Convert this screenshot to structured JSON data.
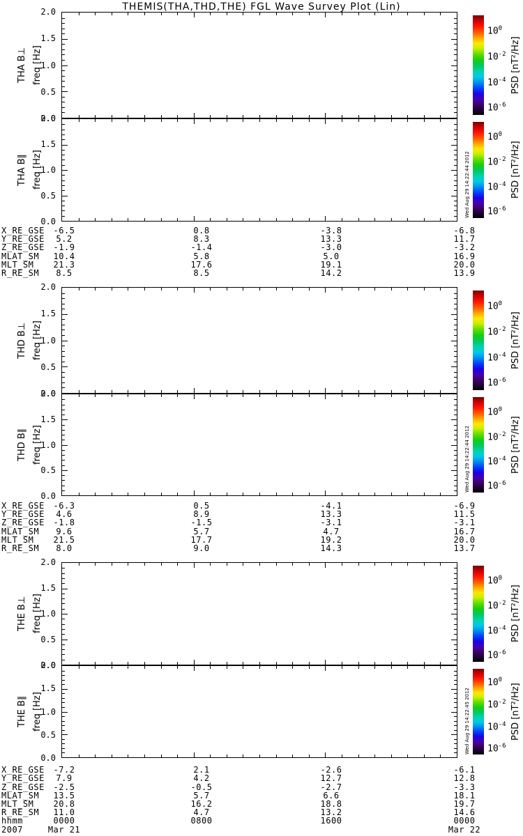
{
  "title": "THEMIS(THA,THD,THE) FGL Wave Survey Plot (Lin)",
  "axes": {
    "freq_label": "freq [Hz]",
    "freq_ticks": [
      "2.0",
      "1.5",
      "1.0",
      "0.5",
      "0.0"
    ],
    "psd_label": "PSD [nT²/Hz]",
    "psd_ticks": [
      {
        "base": "10",
        "exp": "0"
      },
      {
        "base": "10",
        "exp": "-2"
      },
      {
        "base": "10",
        "exp": "-4"
      },
      {
        "base": "10",
        "exp": "-6"
      }
    ]
  },
  "panels": [
    {
      "label": "THA B⊥"
    },
    {
      "label": "THA B∥",
      "timestamp": "Wed Aug 29 14:22:44 2012"
    },
    {
      "label": "THD B⊥"
    },
    {
      "label": "THD B∥",
      "timestamp": "Wed Aug 29 14:22:44 2012"
    },
    {
      "label": "THE B⊥"
    },
    {
      "label": "THE B∥",
      "timestamp": "Wed Aug 29 14:22:45 2012"
    }
  ],
  "tables": [
    {
      "spacecraft": "THA",
      "rows": [
        {
          "label": "X_RE_GSE",
          "values": [
            "-6.5",
            "0.8",
            "-3.8",
            "-6.8"
          ]
        },
        {
          "label": "Y_RE_GSE",
          "values": [
            "5.2",
            "8.3",
            "13.3",
            "11.7"
          ]
        },
        {
          "label": "Z_RE_GSE",
          "values": [
            "-1.9",
            "-1.4",
            "-3.0",
            "-3.2"
          ]
        },
        {
          "label": "MLAT_SM",
          "values": [
            "10.4",
            "5.8",
            "5.0",
            "16.9"
          ]
        },
        {
          "label": "MLT_SM",
          "values": [
            "21.3",
            "17.6",
            "19.1",
            "20.0"
          ]
        },
        {
          "label": "R_RE_SM",
          "values": [
            "8.5",
            "8.5",
            "14.2",
            "13.9"
          ]
        }
      ]
    },
    {
      "spacecraft": "THD",
      "rows": [
        {
          "label": "X_RE_GSE",
          "values": [
            "-6.3",
            "0.5",
            "-4.1",
            "-6.9"
          ]
        },
        {
          "label": "Y_RE_GSE",
          "values": [
            "4.6",
            "8.9",
            "13.3",
            "11.5"
          ]
        },
        {
          "label": "Z_RE_GSE",
          "values": [
            "-1.8",
            "-1.5",
            "-3.1",
            "-3.1"
          ]
        },
        {
          "label": "MLAT_SM",
          "values": [
            "9.6",
            "5.7",
            "4.7",
            "16.7"
          ]
        },
        {
          "label": "MLT_SM",
          "values": [
            "21.5",
            "17.7",
            "19.2",
            "20.0"
          ]
        },
        {
          "label": "R_RE_SM",
          "values": [
            "8.0",
            "9.0",
            "14.3",
            "13.7"
          ]
        }
      ]
    },
    {
      "spacecraft": "THE",
      "rows": [
        {
          "label": "X_RE_GSE",
          "values": [
            "-7.2",
            "2.1",
            "-2.6",
            "-6.1"
          ]
        },
        {
          "label": "Y_RE_GSE",
          "values": [
            "7.9",
            "4.2",
            "12.7",
            "12.8"
          ]
        },
        {
          "label": "Z_RE_GSE",
          "values": [
            "-2.5",
            "-0.5",
            "-2.7",
            "-3.3"
          ]
        },
        {
          "label": "MLAT_SM",
          "values": [
            "13.5",
            "5.7",
            "6.6",
            "18.1"
          ]
        },
        {
          "label": "MLT_SM",
          "values": [
            "20.8",
            "16.2",
            "18.8",
            "19.7"
          ]
        },
        {
          "label": "R_RE_SM",
          "values": [
            "11.0",
            "4.7",
            "13.2",
            "14.6"
          ]
        }
      ]
    }
  ],
  "time_axis": {
    "label": "hhmm",
    "ticks": [
      "0000",
      "0800",
      "1600",
      "0000"
    ],
    "year": "2007",
    "date_start": "Mar 21",
    "date_end": "Mar 22"
  },
  "colors": {
    "background": "#ffffff",
    "foreground": "#000000",
    "colorbar_gradient": [
      [
        "#6e0000",
        "0%"
      ],
      [
        "#c80000",
        "5%"
      ],
      [
        "#ff1400",
        "11%"
      ],
      [
        "#ff6400",
        "18%"
      ],
      [
        "#ffaa00",
        "23%"
      ],
      [
        "#ffe600",
        "28%"
      ],
      [
        "#c8f000",
        "33%"
      ],
      [
        "#64dc00",
        "39%"
      ],
      [
        "#14cd14",
        "45%"
      ],
      [
        "#00c864",
        "51%"
      ],
      [
        "#00d2b4",
        "57%"
      ],
      [
        "#00c8e6",
        "62%"
      ],
      [
        "#0096f0",
        "67%"
      ],
      [
        "#0046fa",
        "73%"
      ],
      [
        "#1e00e6",
        "79%"
      ],
      [
        "#4600aa",
        "85%"
      ],
      [
        "#3c0064",
        "90%"
      ],
      [
        "#1e0032",
        "95%"
      ],
      [
        "#000000",
        "100%"
      ]
    ]
  },
  "chart_data": {
    "type": "heatmap",
    "title": "THEMIS(THA,THD,THE) FGL Wave Survey Plot (Lin)",
    "note": "Six stacked wave-power spectrogram panels; all panels are blank (no spectral data plotted).",
    "panels": [
      "THA B⊥",
      "THA B∥",
      "THD B⊥",
      "THD B∥",
      "THE B⊥",
      "THE B∥"
    ],
    "ylabel": "freq [Hz]",
    "ylim": [
      0.0,
      2.0
    ],
    "y_major_ticks": [
      0.0,
      0.5,
      1.0,
      1.5,
      2.0
    ],
    "colorbar": {
      "label": "PSD [nT²/Hz]",
      "scale": "log",
      "tick_values": [
        1,
        0.01,
        0.0001,
        1e-06
      ],
      "tick_labels": [
        "10^0",
        "10^-2",
        "10^-4",
        "10^-6"
      ]
    },
    "x": {
      "label": "hhmm",
      "start": "2007 Mar 21 0000",
      "end": "2007 Mar 22 0000",
      "tick_hours": [
        0,
        8,
        16,
        24
      ],
      "tick_labels": [
        "0000",
        "0800",
        "1600",
        "0000"
      ]
    },
    "ephemeris": {
      "tick_times_hhmm": [
        "0000",
        "0800",
        "1600",
        "0000"
      ],
      "THA": {
        "X_RE_GSE": [
          -6.5,
          0.8,
          -3.8,
          -6.8
        ],
        "Y_RE_GSE": [
          5.2,
          8.3,
          13.3,
          11.7
        ],
        "Z_RE_GSE": [
          -1.9,
          -1.4,
          -3.0,
          -3.2
        ],
        "MLAT_SM": [
          10.4,
          5.8,
          5.0,
          16.9
        ],
        "MLT_SM": [
          21.3,
          17.6,
          19.1,
          20.0
        ],
        "R_RE_SM": [
          8.5,
          8.5,
          14.2,
          13.9
        ]
      },
      "THD": {
        "X_RE_GSE": [
          -6.3,
          0.5,
          -4.1,
          -6.9
        ],
        "Y_RE_GSE": [
          4.6,
          8.9,
          13.3,
          11.5
        ],
        "Z_RE_GSE": [
          -1.8,
          -1.5,
          -3.1,
          -3.1
        ],
        "MLAT_SM": [
          9.6,
          5.7,
          4.7,
          16.7
        ],
        "MLT_SM": [
          21.5,
          17.7,
          19.2,
          20.0
        ],
        "R_RE_SM": [
          8.0,
          9.0,
          14.3,
          13.7
        ]
      },
      "THE": {
        "X_RE_GSE": [
          -7.2,
          2.1,
          -2.6,
          -6.1
        ],
        "Y_RE_GSE": [
          7.9,
          4.2,
          12.7,
          12.8
        ],
        "Z_RE_GSE": [
          -2.5,
          -0.5,
          -2.7,
          -3.3
        ],
        "MLAT_SM": [
          13.5,
          5.7,
          6.6,
          18.1
        ],
        "MLT_SM": [
          20.8,
          16.2,
          18.8,
          19.7
        ],
        "R_RE_SM": [
          11.0,
          4.7,
          13.2,
          14.6
        ]
      }
    }
  }
}
